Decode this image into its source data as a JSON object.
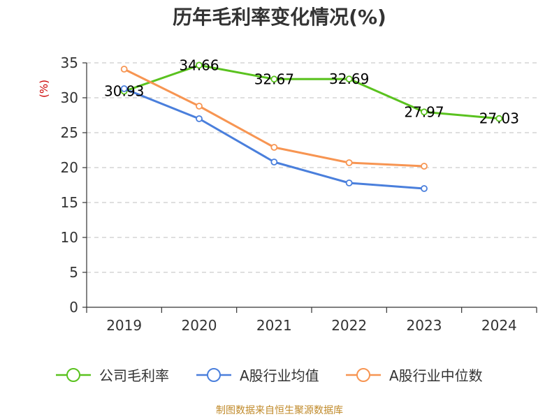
{
  "chart_data": {
    "type": "line",
    "title": "历年毛利率变化情况(%)",
    "ylabel": "(%)",
    "xlabel": "",
    "categories": [
      "2019",
      "2020",
      "2021",
      "2022",
      "2023",
      "2024"
    ],
    "y_ticks": [
      "0",
      "5",
      "10",
      "15",
      "20",
      "25",
      "30",
      "35"
    ],
    "ylim": [
      0,
      35
    ],
    "grid": true,
    "legend_position": "bottom",
    "series": [
      {
        "name": "公司毛利率",
        "color": "#5ac21f",
        "values": [
          30.93,
          34.66,
          32.67,
          32.69,
          27.97,
          27.03
        ],
        "labels": [
          "30.93",
          "34.66",
          "32.67",
          "32.69",
          "27.97",
          "27.03"
        ]
      },
      {
        "name": "A股行业均值",
        "color": "#4a7fdc",
        "values": [
          31.3,
          27.0,
          20.8,
          17.8,
          17.0,
          null
        ]
      },
      {
        "name": "A股行业中位数",
        "color": "#f79552",
        "values": [
          34.1,
          28.8,
          22.9,
          20.7,
          20.2,
          null
        ]
      }
    ]
  },
  "source_note": "制图数据来自恒生聚源数据库"
}
